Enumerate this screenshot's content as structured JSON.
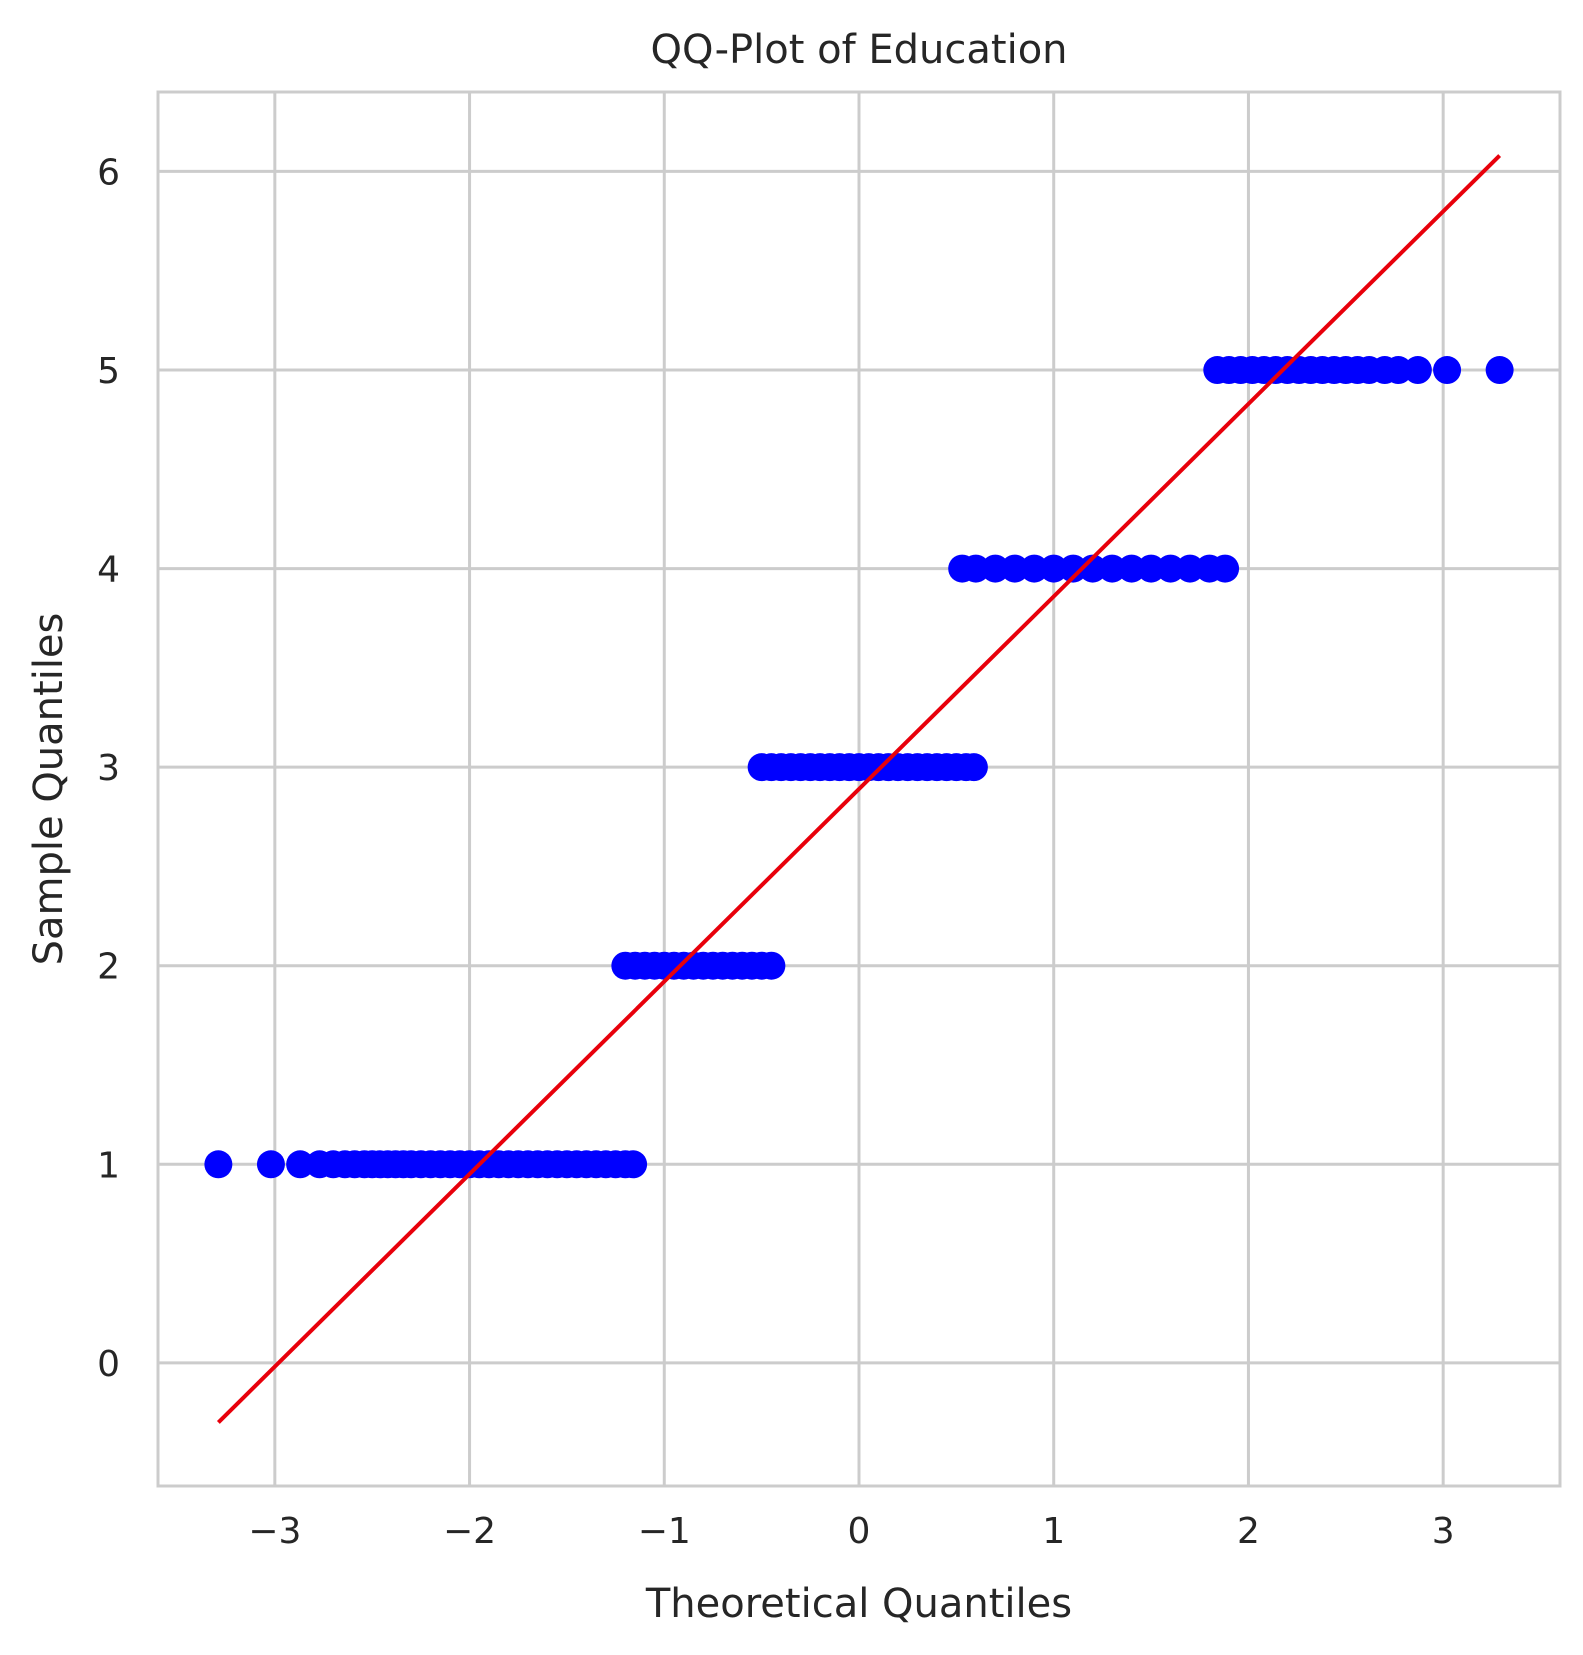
{
  "chart_data": {
    "type": "scatter",
    "title": "QQ-Plot of Education",
    "xlabel": "Theoretical Quantiles",
    "ylabel": "Sample Quantiles",
    "xlim": [
      -3.6,
      3.6
    ],
    "ylim": [
      -0.62,
      6.4
    ],
    "x_ticks": [
      -3,
      -2,
      -1,
      0,
      1,
      2,
      3
    ],
    "x_tick_labels": [
      "−3",
      "−2",
      "−1",
      "0",
      "1",
      "2",
      "3"
    ],
    "y_ticks": [
      0,
      1,
      2,
      3,
      4,
      5,
      6
    ],
    "y_tick_labels": [
      "0",
      "1",
      "2",
      "3",
      "4",
      "5",
      "6"
    ],
    "grid": true,
    "colors": {
      "points": "#0000ff",
      "line": "#e8000b",
      "grid": "#cccccc",
      "frame": "#cccccc",
      "background": "#ffffff"
    },
    "series": [
      {
        "kind": "points",
        "groups": [
          {
            "y": 1,
            "x": [
              -3.29,
              -3.02,
              -2.87,
              -2.77,
              -2.7,
              -2.64,
              -2.59,
              -2.54,
              -2.5,
              -2.46,
              -2.42,
              -2.38,
              -2.34,
              -2.3,
              -2.25,
              -2.2,
              -2.15,
              -2.1,
              -2.05,
              -2.0,
              -1.95,
              -1.9,
              -1.85,
              -1.8,
              -1.75,
              -1.7,
              -1.65,
              -1.6,
              -1.55,
              -1.5,
              -1.45,
              -1.4,
              -1.35,
              -1.3,
              -1.25,
              -1.2,
              -1.16
            ]
          },
          {
            "y": 2,
            "x": [
              -1.2,
              -1.15,
              -1.1,
              -1.05,
              -1.0,
              -0.95,
              -0.9,
              -0.85,
              -0.8,
              -0.75,
              -0.7,
              -0.65,
              -0.6,
              -0.55,
              -0.5,
              -0.45
            ]
          },
          {
            "y": 3,
            "x": [
              -0.5,
              -0.45,
              -0.4,
              -0.35,
              -0.3,
              -0.25,
              -0.2,
              -0.15,
              -0.1,
              -0.05,
              0.0,
              0.05,
              0.1,
              0.15,
              0.2,
              0.25,
              0.3,
              0.35,
              0.4,
              0.45,
              0.5,
              0.55,
              0.59
            ]
          },
          {
            "y": 4,
            "x": [
              0.53,
              0.6,
              0.7,
              0.8,
              0.9,
              1.0,
              1.1,
              1.2,
              1.3,
              1.4,
              1.5,
              1.6,
              1.7,
              1.8,
              1.88
            ]
          },
          {
            "y": 5,
            "x": [
              1.84,
              1.9,
              1.96,
              2.02,
              2.08,
              2.14,
              2.2,
              2.26,
              2.32,
              2.38,
              2.44,
              2.5,
              2.56,
              2.62,
              2.7,
              2.77,
              2.87,
              3.02,
              3.29
            ]
          }
        ]
      },
      {
        "kind": "line",
        "points": [
          [
            -3.29,
            -0.3
          ],
          [
            3.29,
            6.08
          ]
        ]
      }
    ]
  }
}
